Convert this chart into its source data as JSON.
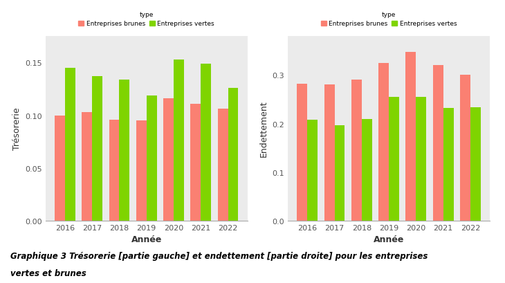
{
  "years": [
    2016,
    2017,
    2018,
    2019,
    2020,
    2021,
    2022
  ],
  "tresorerie": {
    "brunes": [
      0.1,
      0.103,
      0.096,
      0.095,
      0.116,
      0.111,
      0.106
    ],
    "vertes": [
      0.145,
      0.137,
      0.134,
      0.119,
      0.153,
      0.149,
      0.126
    ]
  },
  "endettement": {
    "brunes": [
      0.282,
      0.28,
      0.29,
      0.325,
      0.347,
      0.32,
      0.3
    ],
    "vertes": [
      0.208,
      0.196,
      0.21,
      0.255,
      0.255,
      0.232,
      0.234
    ]
  },
  "color_brunes": "#FA8072",
  "color_vertes": "#7FD400",
  "legend_label_brunes": "Entreprises brunes",
  "legend_label_vertes": "Entreprises vertes",
  "legend_type_label": "type",
  "ylabel_left": "Trésorerie",
  "ylabel_right": "Endettement",
  "xlabel": "Année",
  "bg_color": "#EBEBEB",
  "fig_bg": "#FFFFFF",
  "caption_line1": "Graphique 3 Trésorerie [partie gauche] et endettement [partie droite] pour les entreprises",
  "caption_line2": "vertes et brunes",
  "caption_fontsize": 8.5,
  "bar_width": 0.38,
  "ylim_left": [
    0,
    0.175
  ],
  "ylim_right": [
    0,
    0.38
  ],
  "yticks_left": [
    0.0,
    0.05,
    0.1,
    0.15
  ],
  "yticks_right": [
    0.0,
    0.1,
    0.2,
    0.3
  ],
  "ytick_labels_left": [
    "0.00",
    "0.05",
    "0.10",
    "0.15"
  ],
  "ytick_labels_right": [
    "0.0",
    "0.1",
    "0.2",
    "0.3"
  ]
}
